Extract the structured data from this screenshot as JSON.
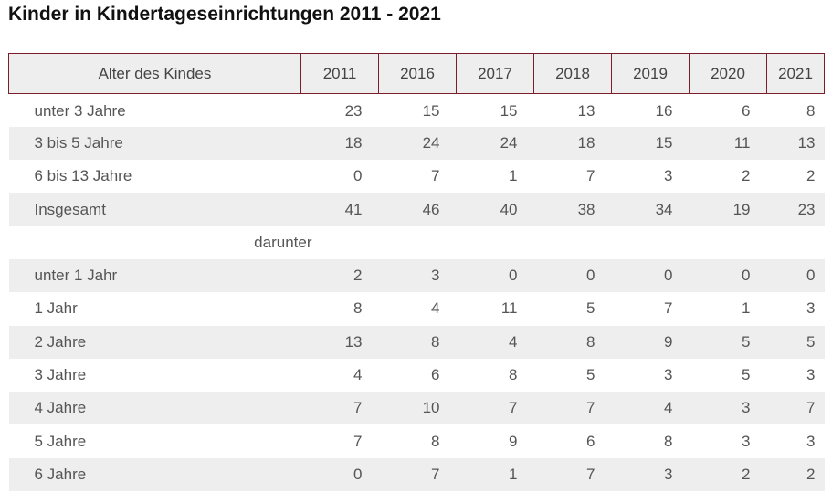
{
  "title": "Kinder in Kindertageseinrichtungen 2011 - 2021",
  "colors": {
    "header_border": "#7a1e2c",
    "shade": "#eeeeee",
    "text": "#555555"
  },
  "chart_data": {
    "type": "table",
    "title": "Kinder in Kindertageseinrichtungen 2011 - 2021",
    "columns": [
      "Alter des Kindes",
      "2011",
      "2016",
      "2017",
      "2018",
      "2019",
      "2020",
      "2021"
    ],
    "rows": [
      {
        "label": "unter 3 Jahre",
        "values": [
          23,
          15,
          15,
          13,
          16,
          6,
          8
        ]
      },
      {
        "label": "3 bis 5 Jahre",
        "values": [
          18,
          24,
          24,
          18,
          15,
          11,
          13
        ]
      },
      {
        "label": "6 bis 13 Jahre",
        "values": [
          0,
          7,
          1,
          7,
          3,
          2,
          2
        ]
      },
      {
        "label": "Insgesamt",
        "values": [
          41,
          46,
          40,
          38,
          34,
          19,
          23
        ]
      }
    ],
    "subheading": "darunter",
    "sub_rows": [
      {
        "label": "unter 1 Jahr",
        "values": [
          2,
          3,
          0,
          0,
          0,
          0,
          0
        ]
      },
      {
        "label": "1 Jahr",
        "values": [
          8,
          4,
          11,
          5,
          7,
          1,
          3
        ]
      },
      {
        "label": "2 Jahre",
        "values": [
          13,
          8,
          4,
          8,
          9,
          5,
          5
        ]
      },
      {
        "label": "3 Jahre",
        "values": [
          4,
          6,
          8,
          5,
          3,
          5,
          3
        ]
      },
      {
        "label": "4 Jahre",
        "values": [
          7,
          10,
          7,
          7,
          4,
          3,
          7
        ]
      },
      {
        "label": "5 Jahre",
        "values": [
          7,
          8,
          9,
          6,
          8,
          3,
          3
        ]
      },
      {
        "label": "6 Jahre",
        "values": [
          0,
          7,
          1,
          7,
          3,
          2,
          2
        ]
      }
    ]
  }
}
